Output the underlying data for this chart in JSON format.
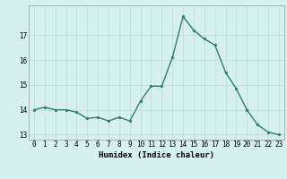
{
  "x": [
    0,
    1,
    2,
    3,
    4,
    5,
    6,
    7,
    8,
    9,
    10,
    11,
    12,
    13,
    14,
    15,
    16,
    17,
    18,
    19,
    20,
    21,
    22,
    23
  ],
  "y": [
    14.0,
    14.1,
    14.0,
    14.0,
    13.9,
    13.65,
    13.7,
    13.55,
    13.7,
    13.55,
    14.35,
    14.95,
    14.95,
    16.1,
    17.75,
    17.2,
    16.85,
    16.6,
    15.5,
    14.85,
    14.0,
    13.4,
    13.1,
    13.0
  ],
  "line_color": "#2e7d6e",
  "marker": "o",
  "marker_size": 1.8,
  "bg_color": "#d6f0ef",
  "grid_color": "#b8dcda",
  "xlabel": "Humidex (Indice chaleur)",
  "ylim": [
    12.8,
    18.2
  ],
  "xlim": [
    -0.5,
    23.5
  ],
  "yticks": [
    13,
    14,
    15,
    16,
    17
  ],
  "xticks": [
    0,
    1,
    2,
    3,
    4,
    5,
    6,
    7,
    8,
    9,
    10,
    11,
    12,
    13,
    14,
    15,
    16,
    17,
    18,
    19,
    20,
    21,
    22,
    23
  ],
  "tick_label_fontsize": 5.5,
  "xlabel_fontsize": 6.5,
  "linewidth": 1.0
}
